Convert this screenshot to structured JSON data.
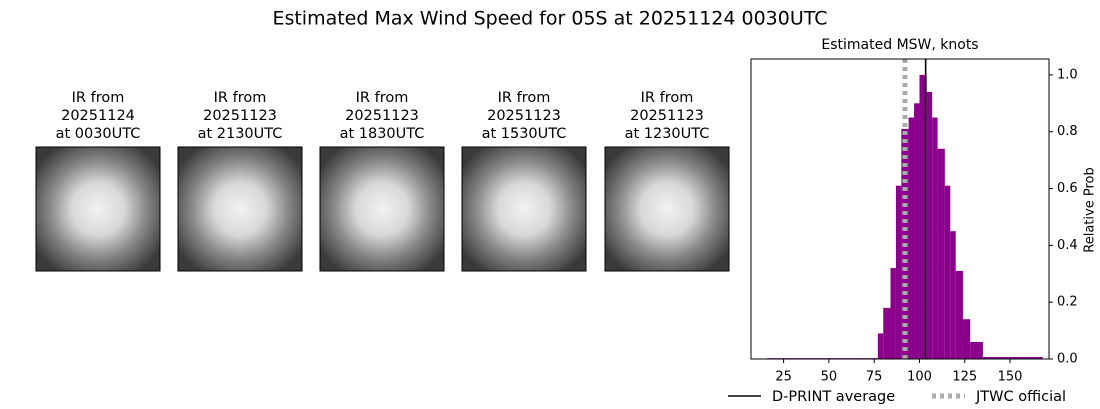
{
  "title": "Estimated Max Wind Speed for 05S at 20251124 0030UTC",
  "panels": [
    {
      "label": [
        "IR from",
        "20251124",
        "at 0030UTC"
      ]
    },
    {
      "label": [
        "IR from",
        "20251123",
        "at 2130UTC"
      ]
    },
    {
      "label": [
        "IR from",
        "20251123",
        "at 1830UTC"
      ]
    },
    {
      "label": [
        "IR from",
        "20251123",
        "at 1530UTC"
      ]
    },
    {
      "label": [
        "IR from",
        "20251123",
        "at 1230UTC"
      ]
    }
  ],
  "chart_data": {
    "type": "histogram",
    "title": "Estimated MSW, knots",
    "ylabel": "Relative Prob",
    "bins": [
      16,
      77,
      80,
      84,
      87,
      90,
      94,
      97,
      100,
      104,
      107,
      110,
      114,
      117,
      120,
      124,
      128,
      135,
      168
    ],
    "counts": [
      0.003,
      0.09,
      0.18,
      0.32,
      0.61,
      0.81,
      0.85,
      0.9,
      1.0,
      0.94,
      0.85,
      0.74,
      0.61,
      0.45,
      0.31,
      0.14,
      0.06,
      0.007
    ],
    "color": "#8b008b",
    "xlim": [
      7,
      171.5
    ],
    "xticks": [
      25,
      50,
      75,
      100,
      125,
      150
    ],
    "ylim": [
      0,
      1.056
    ],
    "yticks": [
      {
        "value": 0,
        "label": "0.0"
      },
      0.2,
      0.4,
      0.6,
      {
        "value": 1,
        "label": "1.0"
      },
      0.8
    ],
    "lines": [
      {
        "name": "D-PRINT average",
        "value": 103.4,
        "color": "#000000",
        "style": "solid"
      },
      {
        "name": "JTWC official",
        "value": 92,
        "color": "#aaaaaa",
        "style": "dotted"
      }
    ],
    "legend": "below"
  }
}
